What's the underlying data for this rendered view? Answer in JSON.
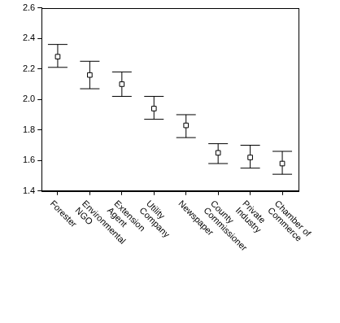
{
  "chart_data": {
    "type": "scatter",
    "marker": "square",
    "color": "#000000",
    "grid": false,
    "categories": [
      "Forester",
      "Environmental NGO",
      "Extension Agent",
      "Utility Company",
      "Newspaper",
      "County Commissioner",
      "Private Industry",
      "Chamber of Commerce"
    ],
    "values": [
      2.28,
      2.16,
      2.1,
      1.94,
      1.83,
      1.65,
      1.62,
      1.58
    ],
    "lower": [
      2.21,
      2.07,
      2.02,
      1.87,
      1.75,
      1.58,
      1.55,
      1.51
    ],
    "upper": [
      2.36,
      2.25,
      2.18,
      2.02,
      1.9,
      1.71,
      1.7,
      1.66
    ],
    "ylim": [
      1.4,
      2.6
    ],
    "yticks": [
      1.4,
      1.6,
      1.8,
      {
        "value": 2,
        "label": "2.0"
      },
      2.2,
      2.4,
      2.6
    ]
  }
}
